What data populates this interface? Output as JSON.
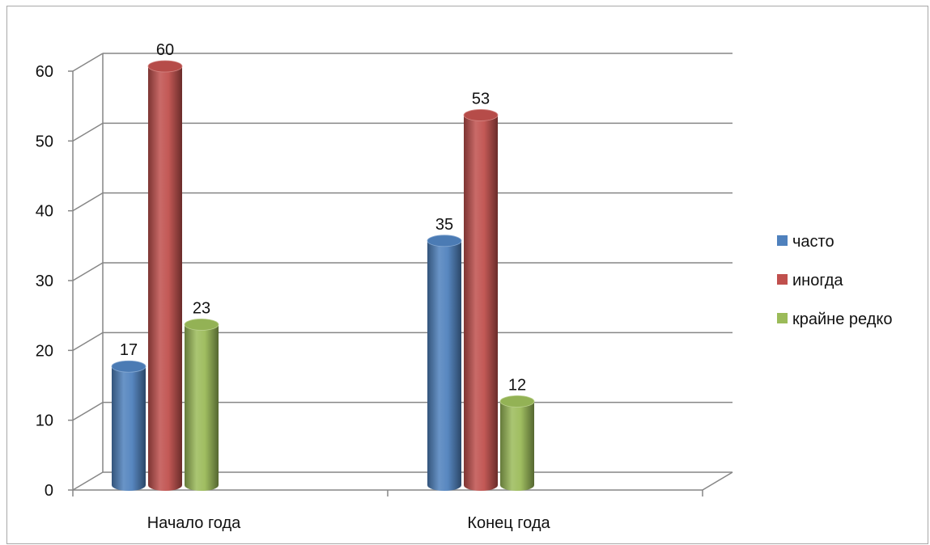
{
  "chart_data": {
    "type": "bar",
    "categories": [
      "Начало года",
      "Конец года"
    ],
    "series": [
      {
        "name": "часто",
        "values": [
          17,
          35
        ],
        "color": "#4f81bd"
      },
      {
        "name": "иногда",
        "values": [
          60,
          53
        ],
        "color": "#c0504d"
      },
      {
        "name": "крайне редко",
        "values": [
          23,
          12
        ],
        "color": "#9bbb59"
      }
    ],
    "ylim": [
      0,
      60
    ],
    "yticks": [
      0,
      10,
      20,
      30,
      40,
      50,
      60
    ],
    "grid": true,
    "legend": "right",
    "data_labels": true,
    "style": "3d-cylinder"
  }
}
